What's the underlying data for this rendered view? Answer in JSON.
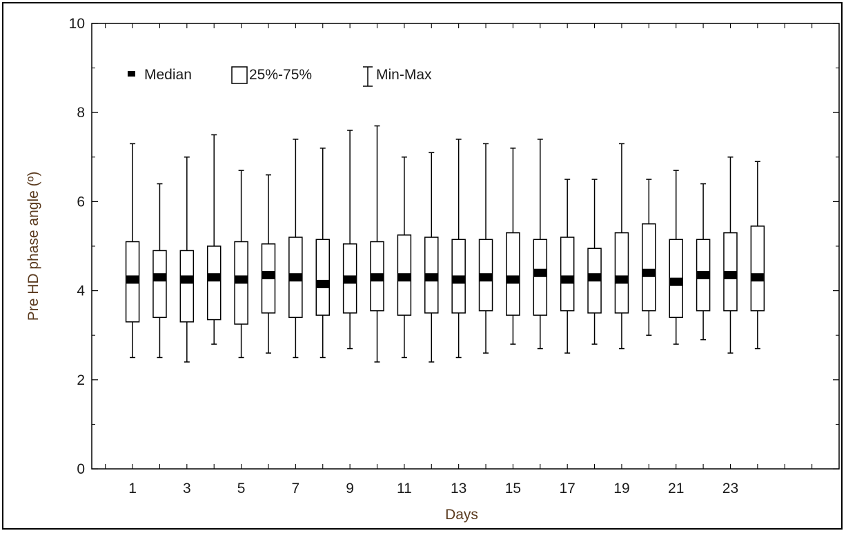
{
  "chart_data": {
    "type": "box",
    "xlabel": "Days",
    "ylabel": "Pre HD phase angle (º)",
    "ylim": [
      0,
      10
    ],
    "y_ticks": [
      0,
      2,
      4,
      6,
      8,
      10
    ],
    "xlim": [
      -0.5,
      27
    ],
    "x_tick_labels": [
      "1",
      "3",
      "5",
      "7",
      "9",
      "11",
      "13",
      "15",
      "17",
      "19",
      "21",
      "23"
    ],
    "grid": false,
    "legend": {
      "position": "top-left",
      "entries": [
        {
          "symbol": "median-marker",
          "label": "Median"
        },
        {
          "symbol": "box",
          "label": "25%-75%"
        },
        {
          "symbol": "whisker",
          "label": "Min-Max"
        }
      ]
    },
    "series": [
      {
        "day": 1,
        "min": 2.5,
        "q1": 3.3,
        "median": 4.25,
        "q3": 5.1,
        "max": 7.3
      },
      {
        "day": 2,
        "min": 2.5,
        "q1": 3.4,
        "median": 4.3,
        "q3": 4.9,
        "max": 6.4
      },
      {
        "day": 3,
        "min": 2.4,
        "q1": 3.3,
        "median": 4.25,
        "q3": 4.9,
        "max": 7.0
      },
      {
        "day": 4,
        "min": 2.8,
        "q1": 3.35,
        "median": 4.3,
        "q3": 5.0,
        "max": 7.5
      },
      {
        "day": 5,
        "min": 2.5,
        "q1": 3.25,
        "median": 4.25,
        "q3": 5.1,
        "max": 6.7
      },
      {
        "day": 6,
        "min": 2.6,
        "q1": 3.5,
        "median": 4.35,
        "q3": 5.05,
        "max": 6.6
      },
      {
        "day": 7,
        "min": 2.5,
        "q1": 3.4,
        "median": 4.3,
        "q3": 5.2,
        "max": 7.4
      },
      {
        "day": 8,
        "min": 2.5,
        "q1": 3.45,
        "median": 4.15,
        "q3": 5.15,
        "max": 7.2
      },
      {
        "day": 9,
        "min": 2.7,
        "q1": 3.5,
        "median": 4.25,
        "q3": 5.05,
        "max": 7.6
      },
      {
        "day": 10,
        "min": 2.4,
        "q1": 3.55,
        "median": 4.3,
        "q3": 5.1,
        "max": 7.7
      },
      {
        "day": 11,
        "min": 2.5,
        "q1": 3.45,
        "median": 4.3,
        "q3": 5.25,
        "max": 7.0
      },
      {
        "day": 12,
        "min": 2.4,
        "q1": 3.5,
        "median": 4.3,
        "q3": 5.2,
        "max": 7.1
      },
      {
        "day": 13,
        "min": 2.5,
        "q1": 3.5,
        "median": 4.25,
        "q3": 5.15,
        "max": 7.4
      },
      {
        "day": 14,
        "min": 2.6,
        "q1": 3.55,
        "median": 4.3,
        "q3": 5.15,
        "max": 7.3
      },
      {
        "day": 15,
        "min": 2.8,
        "q1": 3.45,
        "median": 4.25,
        "q3": 5.3,
        "max": 7.2
      },
      {
        "day": 16,
        "min": 2.7,
        "q1": 3.45,
        "median": 4.4,
        "q3": 5.15,
        "max": 7.4
      },
      {
        "day": 17,
        "min": 2.6,
        "q1": 3.55,
        "median": 4.25,
        "q3": 5.2,
        "max": 6.5
      },
      {
        "day": 18,
        "min": 2.8,
        "q1": 3.5,
        "median": 4.3,
        "q3": 4.95,
        "max": 6.5
      },
      {
        "day": 19,
        "min": 2.7,
        "q1": 3.5,
        "median": 4.25,
        "q3": 5.3,
        "max": 7.3
      },
      {
        "day": 20,
        "min": 3.0,
        "q1": 3.55,
        "median": 4.4,
        "q3": 5.5,
        "max": 6.5
      },
      {
        "day": 21,
        "min": 2.8,
        "q1": 3.4,
        "median": 4.2,
        "q3": 5.15,
        "max": 6.7
      },
      {
        "day": 22,
        "min": 2.9,
        "q1": 3.55,
        "median": 4.35,
        "q3": 5.15,
        "max": 6.4
      },
      {
        "day": 23,
        "min": 2.6,
        "q1": 3.55,
        "median": 4.35,
        "q3": 5.3,
        "max": 7.0
      },
      {
        "day": 24,
        "min": 2.7,
        "q1": 3.55,
        "median": 4.3,
        "q3": 5.45,
        "max": 6.9
      }
    ],
    "colors": {
      "box_fill": "#ffffff",
      "stroke": "#000000",
      "median": "#000000",
      "axis_label": "#5a3a1e"
    }
  }
}
